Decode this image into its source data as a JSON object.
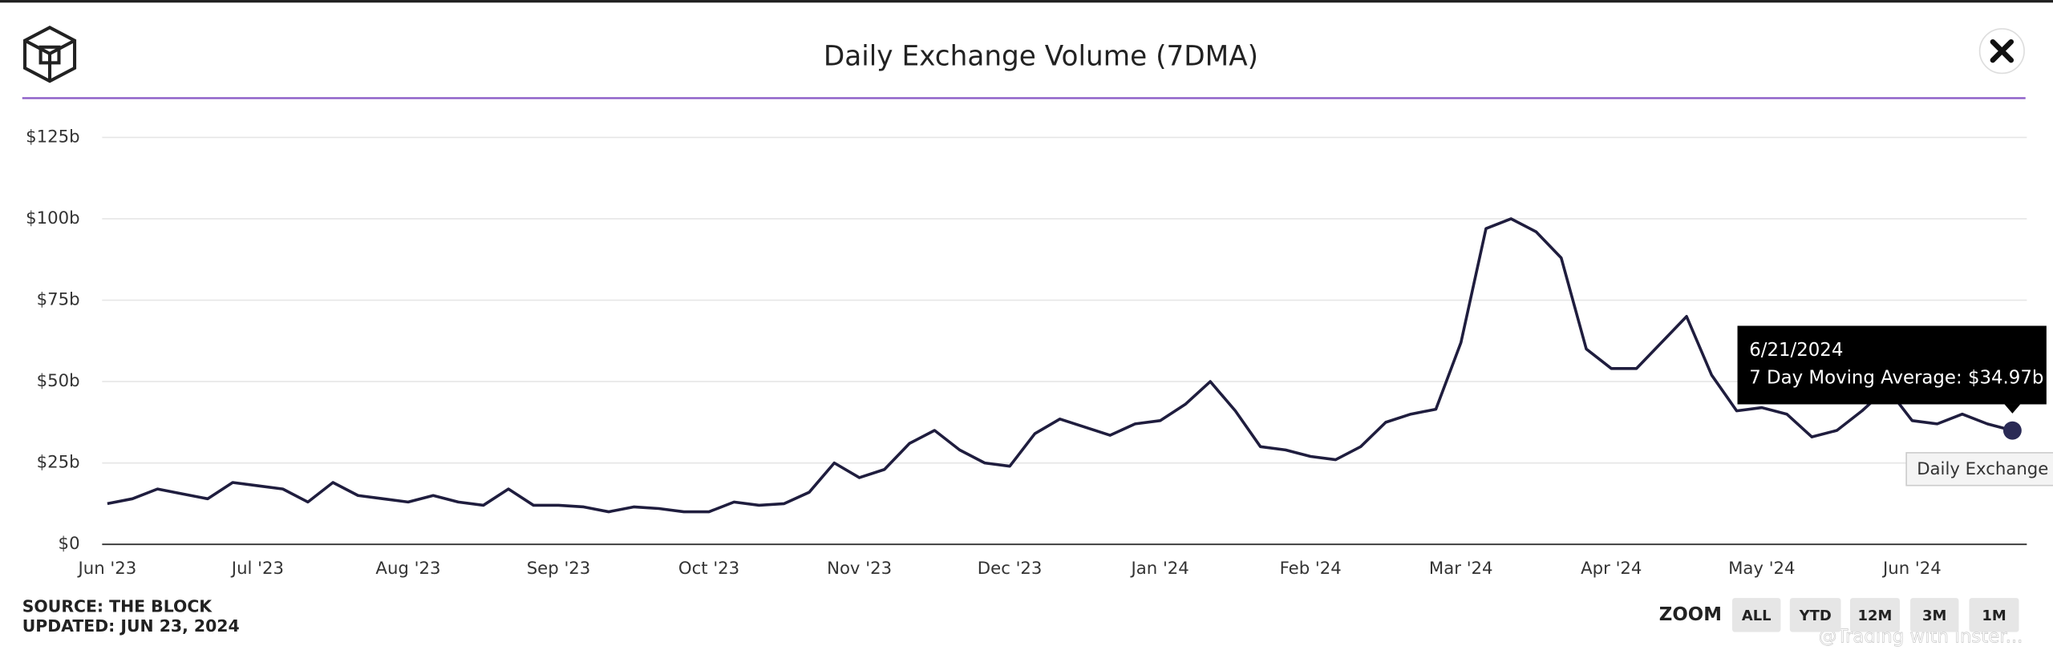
{
  "chart_data": {
    "type": "line",
    "title": "Daily Exchange Volume (7DMA)",
    "categories": [
      "Jun '23",
      null,
      null,
      null,
      null,
      null,
      "Jul '23",
      null,
      null,
      null,
      null,
      null,
      "Aug '23",
      null,
      null,
      null,
      null,
      null,
      "Sep '23",
      null,
      null,
      null,
      null,
      null,
      "Oct '23",
      null,
      null,
      null,
      null,
      null,
      "Nov '23",
      null,
      null,
      null,
      null,
      null,
      "Dec '23",
      null,
      null,
      null,
      null,
      null,
      "Jan '24",
      null,
      null,
      null,
      null,
      null,
      "Feb '24",
      null,
      null,
      null,
      null,
      null,
      "Mar '24",
      null,
      null,
      null,
      null,
      null,
      "Apr '24",
      null,
      null,
      null,
      null,
      null,
      "May '24",
      null,
      null,
      null,
      null,
      null,
      "Jun '24",
      null,
      null,
      null,
      null
    ],
    "series": [
      {
        "name": "Daily Exchange Volume",
        "color": "#1f1d3e",
        "values": [
          12.5,
          14,
          17,
          15.5,
          14,
          19,
          18,
          17,
          13,
          19,
          15,
          14,
          13,
          15,
          13,
          12,
          17,
          12,
          12,
          11.5,
          10,
          11.5,
          11,
          10,
          10,
          13,
          12,
          12.5,
          16,
          25,
          20.5,
          23,
          31,
          35,
          29,
          25,
          24,
          34,
          38.5,
          36,
          33.5,
          37,
          38,
          43,
          50,
          41,
          30,
          29,
          27,
          26,
          30,
          37.5,
          40,
          41.5,
          62,
          97,
          100,
          96,
          88,
          60,
          54,
          54,
          62,
          70,
          52,
          41,
          42,
          40,
          33,
          35,
          41,
          48,
          38,
          37,
          40,
          37,
          34.97
        ]
      }
    ],
    "ylim": [
      0,
      125
    ],
    "yticks": [
      {
        "value": 0,
        "label": "$0"
      },
      {
        "value": 25,
        "label": "$25b"
      },
      {
        "value": 50,
        "label": "$50b"
      },
      {
        "value": 75,
        "label": "$75b"
      },
      {
        "value": 100,
        "label": "$100b"
      },
      {
        "value": 125,
        "label": "$125b"
      }
    ],
    "grid": true,
    "tooltip": {
      "date": "6/21/2024",
      "label": "7 Day Moving Average: $34.97b"
    },
    "source": "SOURCE: THE BLOCK",
    "updated": "UPDATED: JUN 23, 2024",
    "zoom_label": "ZOOM",
    "zoom_buttons": [
      "ALL",
      "YTD",
      "12M",
      "3M",
      "1M"
    ],
    "watermark": "@Trading with Inster..."
  }
}
